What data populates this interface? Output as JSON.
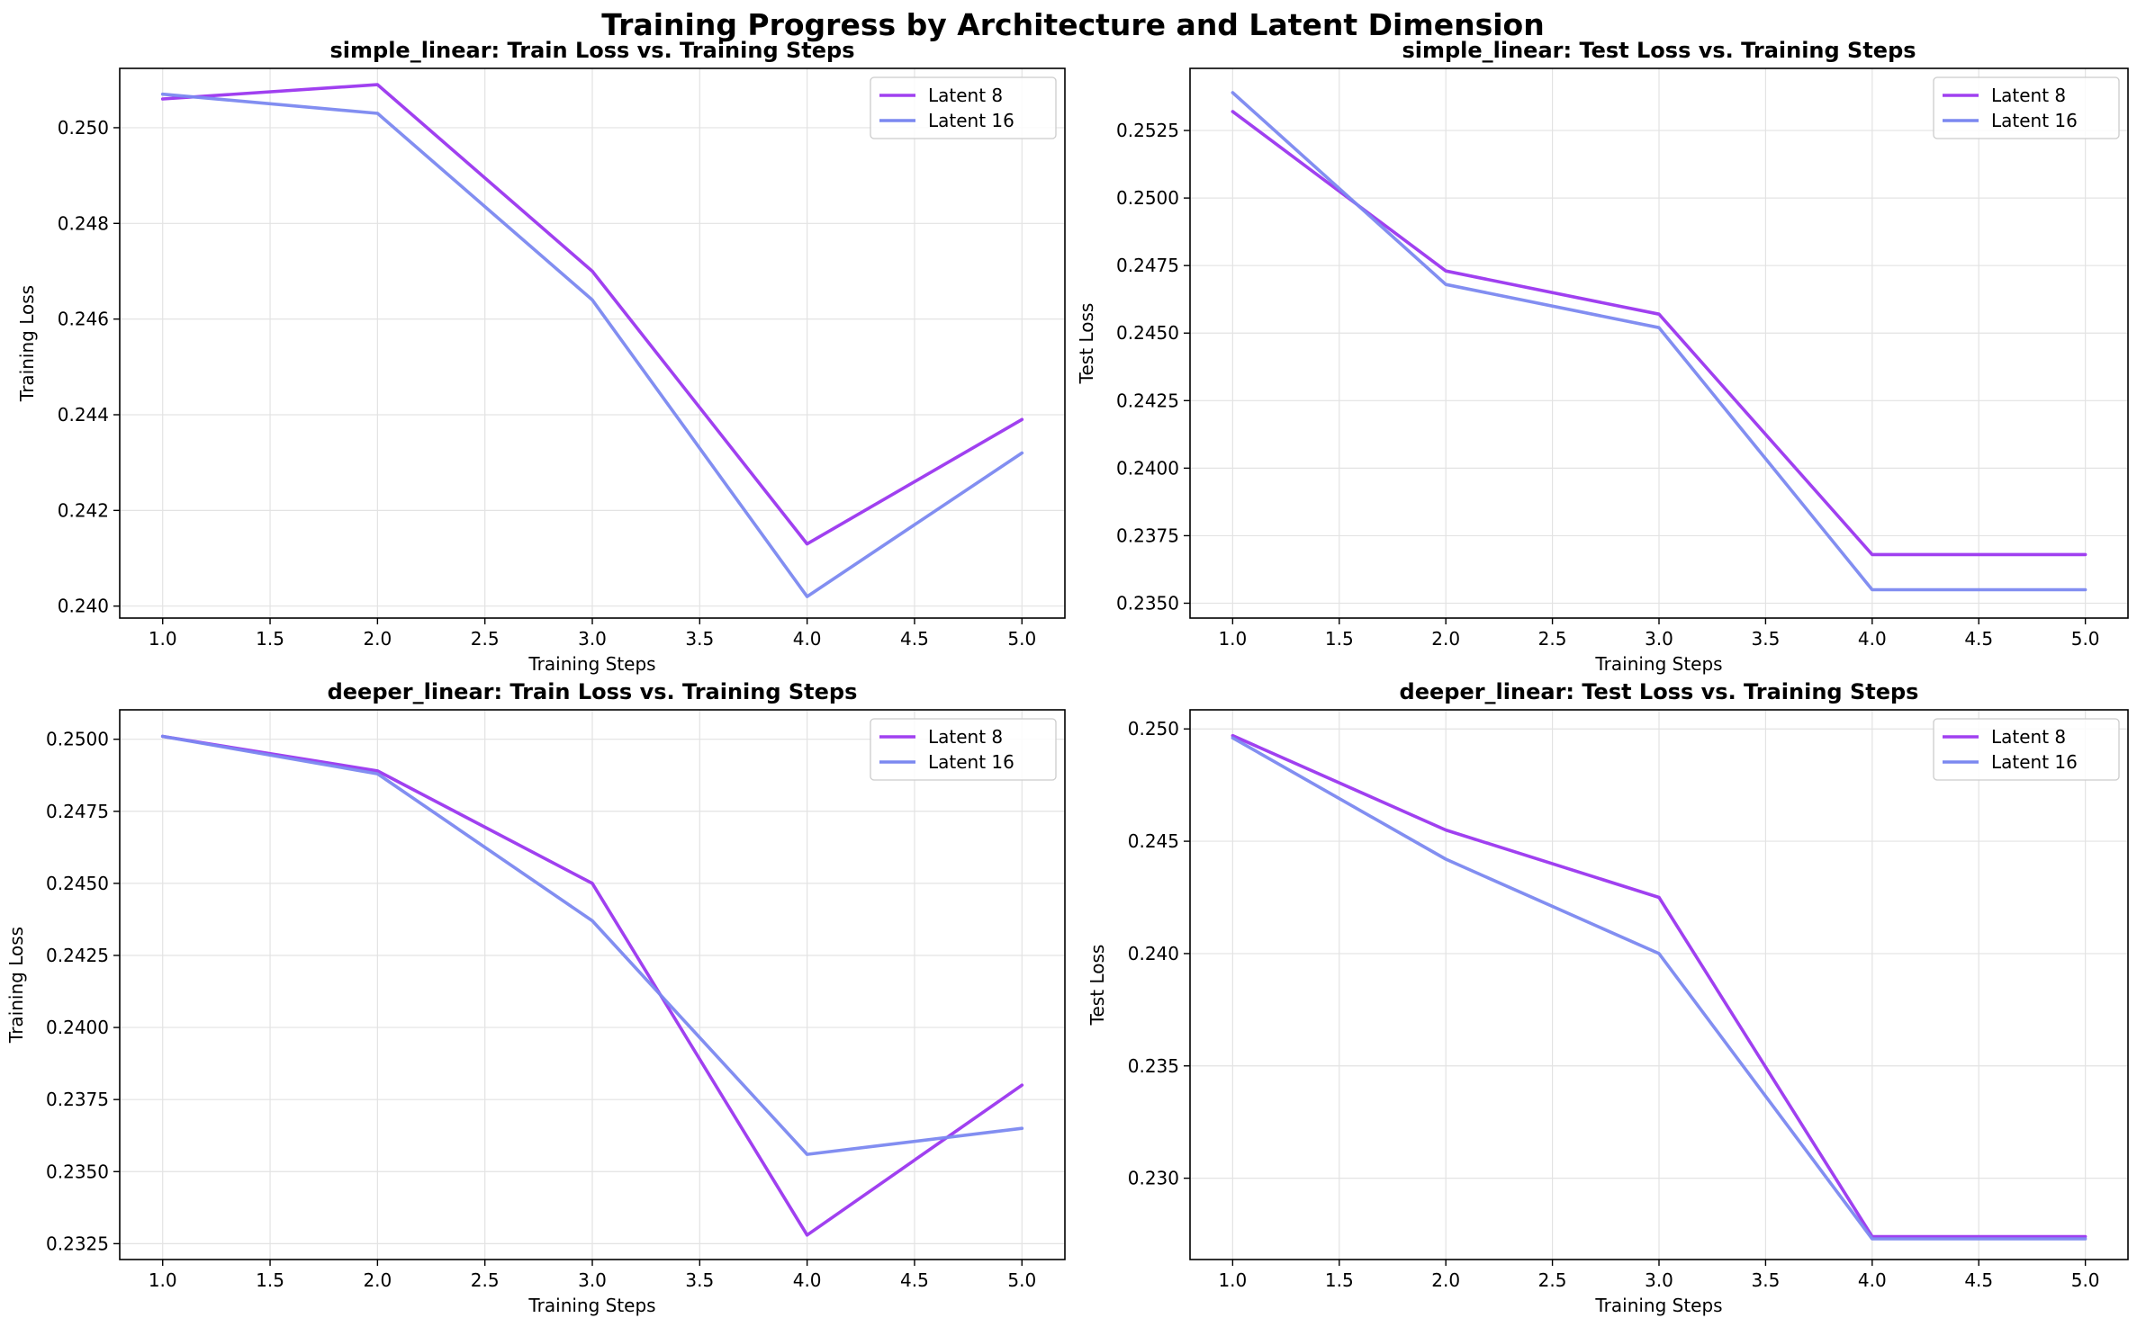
{
  "figure": {
    "title": "Training Progress by Architecture and Latent Dimension"
  },
  "chart_data": [
    {
      "type": "line",
      "title": "simple_linear: Train Loss vs. Training Steps",
      "xlabel": "Training Steps",
      "ylabel": "Training Loss",
      "x": [
        1,
        2,
        3,
        4,
        5
      ],
      "xlim": [
        0.8,
        5.2
      ],
      "ylim": [
        0.23975,
        0.25124
      ],
      "xticks": [
        1.0,
        1.5,
        2.0,
        2.5,
        3.0,
        3.5,
        4.0,
        4.5,
        5.0
      ],
      "xtick_labels": [
        "1.0",
        "1.5",
        "2.0",
        "2.5",
        "3.0",
        "3.5",
        "4.0",
        "4.5",
        "5.0"
      ],
      "yticks": [
        0.24,
        0.242,
        0.244,
        0.246,
        0.248,
        0.25
      ],
      "ytick_labels": [
        "0.240",
        "0.242",
        "0.244",
        "0.246",
        "0.248",
        "0.250"
      ],
      "grid": true,
      "legend": "upper right",
      "series": [
        {
          "name": "Latent 8",
          "color": "#a040f0",
          "values": [
            0.2506,
            0.2509,
            0.247,
            0.2413,
            0.2439
          ]
        },
        {
          "name": "Latent 16",
          "color": "#7b88f0",
          "values": [
            0.2507,
            0.2503,
            0.2464,
            0.2402,
            0.2432
          ]
        }
      ]
    },
    {
      "type": "line",
      "title": "simple_linear: Test Loss vs. Training Steps",
      "xlabel": "Training Steps",
      "ylabel": "Test Loss",
      "x": [
        1,
        2,
        3,
        4,
        5
      ],
      "xlim": [
        0.8,
        5.2
      ],
      "ylim": [
        0.23445,
        0.2548
      ],
      "xticks": [
        1.0,
        1.5,
        2.0,
        2.5,
        3.0,
        3.5,
        4.0,
        4.5,
        5.0
      ],
      "xtick_labels": [
        "1.0",
        "1.5",
        "2.0",
        "2.5",
        "3.0",
        "3.5",
        "4.0",
        "4.5",
        "5.0"
      ],
      "yticks": [
        0.235,
        0.2375,
        0.24,
        0.2425,
        0.245,
        0.2475,
        0.25,
        0.2525
      ],
      "ytick_labels": [
        "0.2350",
        "0.2375",
        "0.2400",
        "0.2425",
        "0.2450",
        "0.2475",
        "0.2500",
        "0.2525"
      ],
      "grid": true,
      "legend": "upper right",
      "series": [
        {
          "name": "Latent 8",
          "color": "#a040f0",
          "values": [
            0.2532,
            0.2473,
            0.2457,
            0.2368,
            0.2368
          ]
        },
        {
          "name": "Latent 16",
          "color": "#7b88f0",
          "values": [
            0.2539,
            0.2468,
            0.2452,
            0.2355,
            0.2355
          ]
        }
      ]
    },
    {
      "type": "line",
      "title": "deeper_linear: Train Loss vs. Training Steps",
      "xlabel": "Training Steps",
      "ylabel": "Training Loss",
      "x": [
        1,
        2,
        3,
        4,
        5
      ],
      "xlim": [
        0.8,
        5.2
      ],
      "ylim": [
        0.23195,
        0.25102
      ],
      "xticks": [
        1.0,
        1.5,
        2.0,
        2.5,
        3.0,
        3.5,
        4.0,
        4.5,
        5.0
      ],
      "xtick_labels": [
        "1.0",
        "1.5",
        "2.0",
        "2.5",
        "3.0",
        "3.5",
        "4.0",
        "4.5",
        "5.0"
      ],
      "yticks": [
        0.2325,
        0.235,
        0.2375,
        0.24,
        0.2425,
        0.245,
        0.2475,
        0.25
      ],
      "ytick_labels": [
        "0.2325",
        "0.2350",
        "0.2375",
        "0.2400",
        "0.2425",
        "0.2450",
        "0.2475",
        "0.2500"
      ],
      "grid": true,
      "legend": "upper right",
      "series": [
        {
          "name": "Latent 8",
          "color": "#a040f0",
          "values": [
            0.2501,
            0.2489,
            0.245,
            0.2328,
            0.238
          ]
        },
        {
          "name": "Latent 16",
          "color": "#7b88f0",
          "values": [
            0.2501,
            0.2488,
            0.2437,
            0.2356,
            0.2365
          ]
        }
      ]
    },
    {
      "type": "line",
      "title": "deeper_linear: Test Loss vs. Training Steps",
      "xlabel": "Training Steps",
      "ylabel": "Test Loss",
      "x": [
        1,
        2,
        3,
        4,
        5
      ],
      "xlim": [
        0.8,
        5.2
      ],
      "ylim": [
        0.22638,
        0.25085
      ],
      "xticks": [
        1.0,
        1.5,
        2.0,
        2.5,
        3.0,
        3.5,
        4.0,
        4.5,
        5.0
      ],
      "xtick_labels": [
        "1.0",
        "1.5",
        "2.0",
        "2.5",
        "3.0",
        "3.5",
        "4.0",
        "4.5",
        "5.0"
      ],
      "yticks": [
        0.23,
        0.235,
        0.24,
        0.245,
        0.25
      ],
      "ytick_labels": [
        "0.230",
        "0.235",
        "0.240",
        "0.245",
        "0.250"
      ],
      "grid": true,
      "legend": "upper right",
      "series": [
        {
          "name": "Latent 8",
          "color": "#a040f0",
          "values": [
            0.2497,
            0.2455,
            0.2425,
            0.2274,
            0.2274
          ]
        },
        {
          "name": "Latent 16",
          "color": "#7b88f0",
          "values": [
            0.2496,
            0.2442,
            0.24,
            0.2273,
            0.2273
          ]
        }
      ]
    }
  ]
}
